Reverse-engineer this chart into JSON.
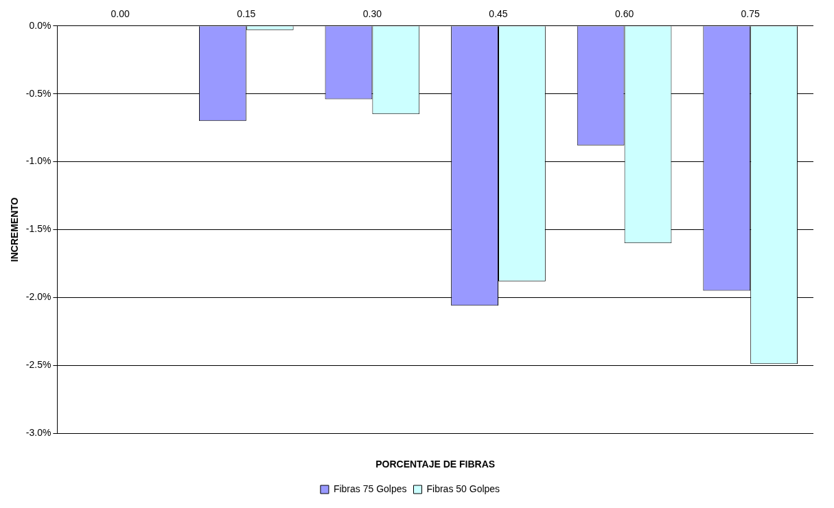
{
  "chart_data": {
    "type": "bar",
    "xlabel": "PORCENTAJE DE FIBRAS",
    "ylabel": "INCREMENTO",
    "categories": [
      "0.00",
      "0.15",
      "0.30",
      "0.45",
      "0.60",
      "0.75"
    ],
    "series": [
      {
        "name": "Fibras 75 Golpes",
        "color": "#9999ff",
        "values": [
          0,
          -0.7,
          -0.54,
          -2.06,
          -0.88,
          -1.95
        ]
      },
      {
        "name": "Fibras 50 Golpes",
        "color": "#ccffff",
        "values": [
          0,
          -0.03,
          -0.65,
          -1.88,
          -1.6,
          -2.49
        ]
      }
    ],
    "ylim": [
      -3,
      0
    ],
    "yticks": [
      {
        "value": -3,
        "label": "-3.0%"
      },
      {
        "value": -2.5,
        "label": "-2.5%"
      },
      {
        "value": -2,
        "label": "-2.0%"
      },
      {
        "value": -1.5,
        "label": "-1.5%"
      },
      {
        "value": -1,
        "label": "-1.0%"
      },
      {
        "value": -0.5,
        "label": "-0.5%"
      },
      {
        "value": 0,
        "label": "0.0%"
      }
    ],
    "grid": "y",
    "legend": "bottom"
  }
}
